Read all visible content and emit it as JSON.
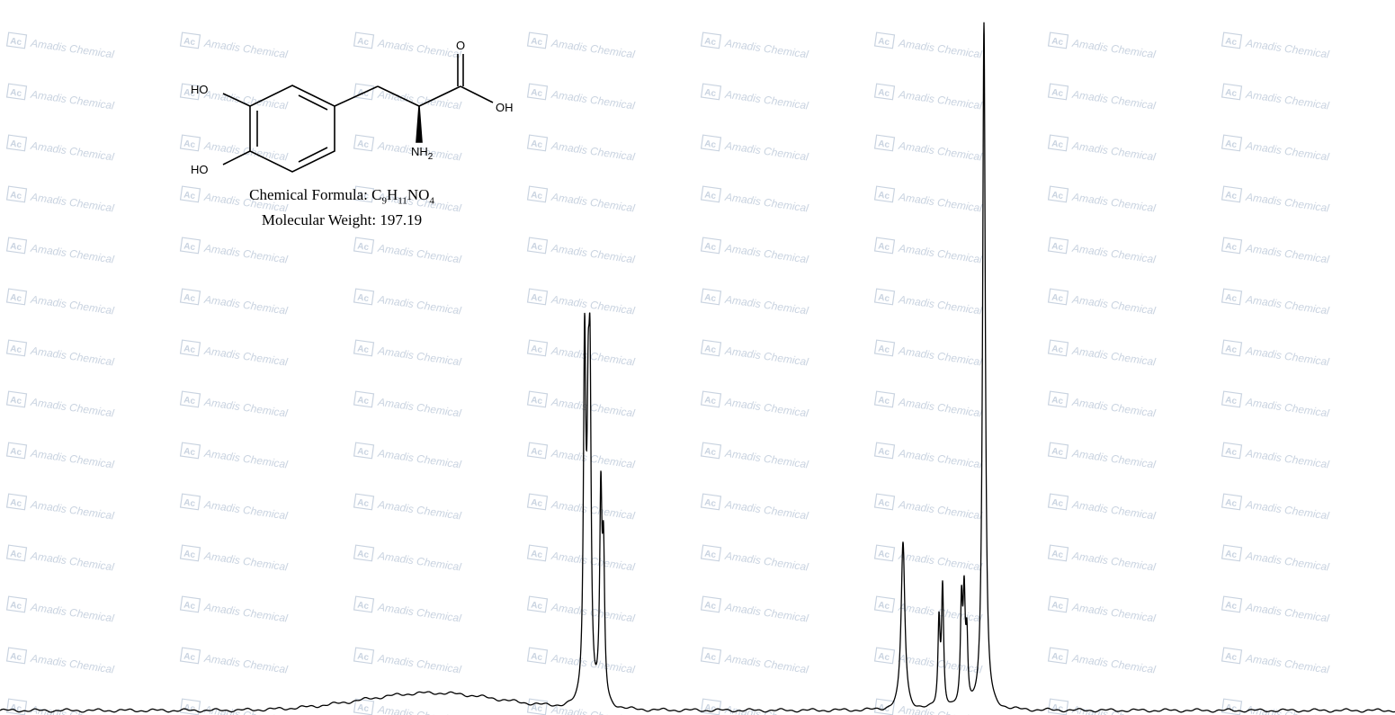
{
  "watermark": {
    "brand": "Amadis Chemical",
    "logo": "Ac"
  },
  "molecule": {
    "formula_label": "Chemical Formula:",
    "formula_parts": [
      "C",
      "9",
      "H",
      "11",
      "NO",
      "4"
    ],
    "weight_label": "Molecular Weight:",
    "weight_value": "197.19",
    "atoms": {
      "ho_top": "HO",
      "ho_bottom": "HO",
      "oxygen": "O",
      "hydroxyl": "OH",
      "amine": "NH",
      "amine_sub": "2"
    }
  },
  "chart_data": {
    "type": "line",
    "title": "",
    "xlabel": "",
    "ylabel": "",
    "x_axis": "chemical shift, ppm (decreasing left to right)",
    "grid": false,
    "legend": "none",
    "line_color": "#000000",
    "peaks": [
      {
        "x": 650,
        "height": 0.498,
        "width": 1.6
      },
      {
        "x": 654,
        "height": 0.32,
        "width": 1.6
      },
      {
        "x": 656,
        "height": 0.39,
        "width": 1.5
      },
      {
        "x": 668,
        "height": 0.285,
        "width": 1.5
      },
      {
        "x": 671,
        "height": 0.2,
        "width": 1.5
      },
      {
        "x": 1004,
        "height": 0.24,
        "width": 2.5
      },
      {
        "x": 1044,
        "height": 0.12,
        "width": 1.4
      },
      {
        "x": 1048,
        "height": 0.17,
        "width": 1.4
      },
      {
        "x": 1069,
        "height": 0.14,
        "width": 1.4
      },
      {
        "x": 1072,
        "height": 0.145,
        "width": 1.4
      },
      {
        "x": 1075,
        "height": 0.09,
        "width": 1.3
      },
      {
        "x": 1094,
        "height": 0.98,
        "width": 1.8
      }
    ],
    "broad_bump": {
      "center": 480,
      "height": 0.025,
      "width": 110
    },
    "x_range": [
      0,
      1551
    ],
    "y_range": [
      0,
      1
    ]
  }
}
